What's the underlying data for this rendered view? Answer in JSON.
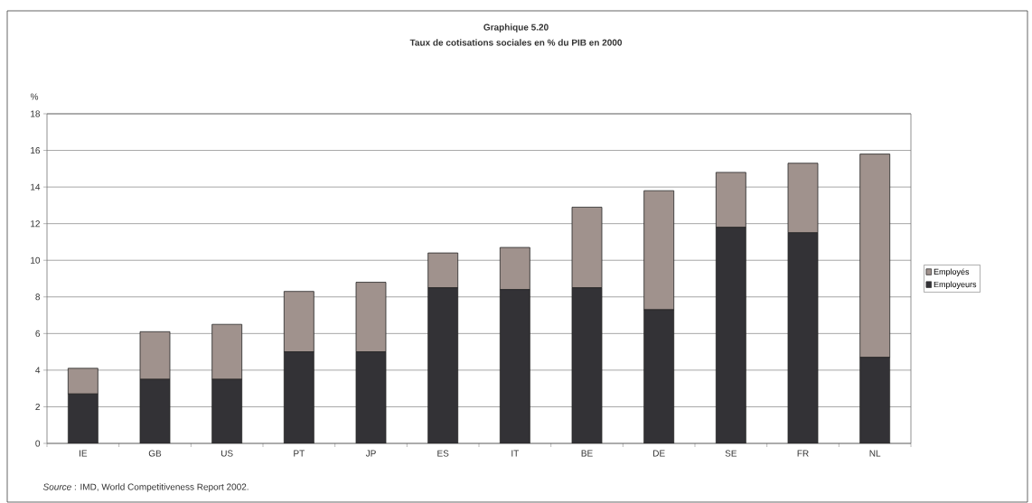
{
  "chart_data": {
    "type": "bar",
    "stacked": true,
    "title": "Graphique 5.20",
    "subtitle": "Taux de cotisations sociales en % du PIB en 2000",
    "ylabel": "%",
    "categories": [
      "IE",
      "GB",
      "US",
      "PT",
      "JP",
      "ES",
      "IT",
      "BE",
      "DE",
      "SE",
      "FR",
      "NL"
    ],
    "series": [
      {
        "name": "Employeurs",
        "color": "#333236",
        "values": [
          2.7,
          3.5,
          3.5,
          5.0,
          5.0,
          8.5,
          8.4,
          8.5,
          7.3,
          11.8,
          11.5,
          4.7
        ]
      },
      {
        "name": "Employés",
        "color": "#a0928d",
        "values": [
          1.4,
          2.6,
          3.0,
          3.3,
          3.8,
          1.9,
          2.3,
          4.4,
          6.5,
          3.0,
          3.8,
          11.1
        ]
      }
    ],
    "ylim": [
      0,
      18
    ],
    "yticks": [
      0,
      2,
      4,
      6,
      8,
      10,
      12,
      14,
      16,
      18
    ],
    "grid": "y",
    "legend": "right",
    "annotations": [
      "*Source* : IMD, World Competitiveness Report 2002."
    ]
  }
}
